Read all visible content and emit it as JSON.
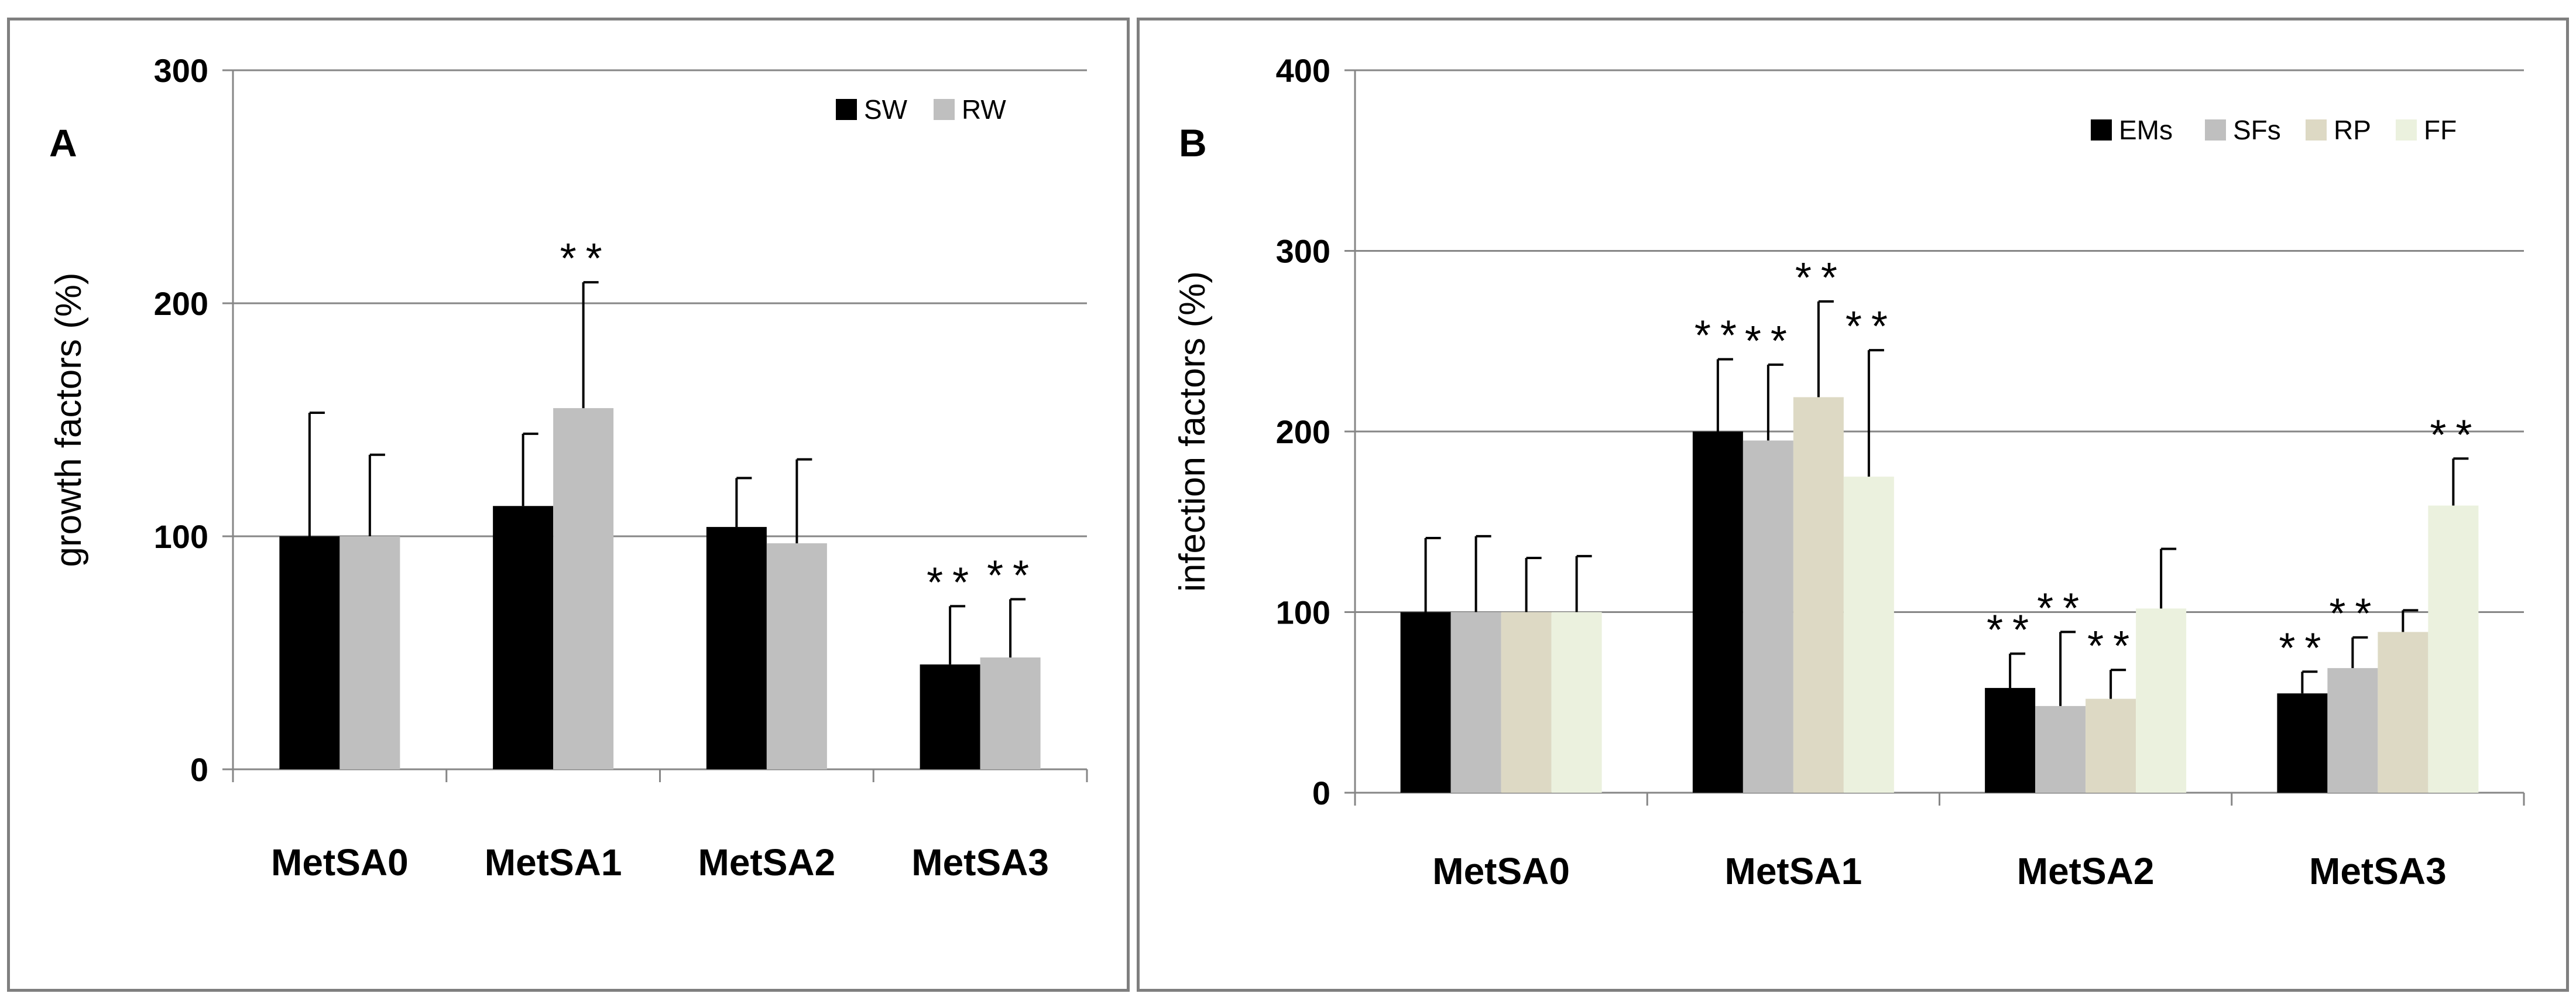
{
  "chart_data": [
    {
      "type": "bar",
      "panel_label": "A",
      "ylabel": "growth factors (%)",
      "ylim": [
        0,
        300
      ],
      "yticks": [
        "0",
        "100",
        "200",
        "300"
      ],
      "grid": true,
      "legend_position": "top-right",
      "categories": [
        "MetSA0",
        "MetSA1",
        "MetSA2",
        "MetSA3"
      ],
      "series": [
        {
          "name": "SW",
          "color": "#000000",
          "values": [
            100,
            113,
            104,
            45
          ],
          "errors": [
            53,
            31,
            21,
            25
          ],
          "annotations": [
            "",
            "",
            "",
            "**"
          ]
        },
        {
          "name": "RW",
          "color": "#bfbfbf",
          "values": [
            100,
            155,
            97,
            48
          ],
          "errors": [
            35,
            54,
            36,
            25
          ],
          "annotations": [
            "",
            "**",
            "",
            "**"
          ]
        }
      ]
    },
    {
      "type": "bar",
      "panel_label": "B",
      "ylabel": "infection factors (%)",
      "ylim": [
        0,
        400
      ],
      "yticks": [
        "0",
        "100",
        "200",
        "300",
        "400"
      ],
      "grid": true,
      "legend_position": "top-right",
      "categories": [
        "MetSA0",
        "MetSA1",
        "MetSA2",
        "MetSA3"
      ],
      "series": [
        {
          "name": "EMs",
          "color": "#000000",
          "values": [
            100,
            200,
            58,
            55
          ],
          "errors": [
            41,
            40,
            19,
            12
          ],
          "annotations": [
            "",
            "**",
            "**",
            "**"
          ]
        },
        {
          "name": "SFs",
          "color": "#bfbfbf",
          "values": [
            100,
            195,
            48,
            69
          ],
          "errors": [
            42,
            42,
            41,
            17
          ],
          "annotations": [
            "",
            "**",
            "**",
            "**"
          ]
        },
        {
          "name": "RP",
          "color": "#ddd9c4",
          "values": [
            100,
            219,
            52,
            89
          ],
          "errors": [
            30,
            53,
            16,
            12
          ],
          "annotations": [
            "",
            "**",
            "**",
            ""
          ]
        },
        {
          "name": "FF",
          "color": "#ebf1de",
          "values": [
            100,
            175,
            102,
            159
          ],
          "errors": [
            31,
            70,
            33,
            26
          ],
          "annotations": [
            "",
            "**",
            "",
            "**"
          ]
        }
      ]
    }
  ]
}
